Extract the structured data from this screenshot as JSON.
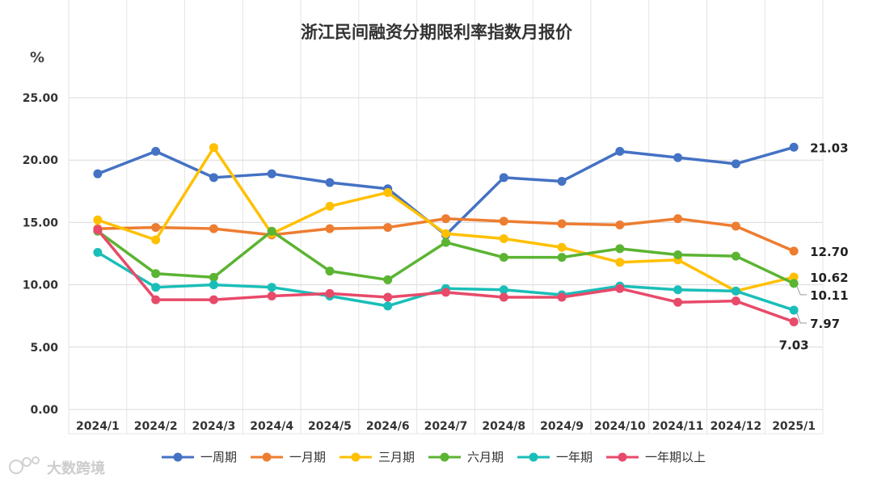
{
  "chart_data": {
    "type": "line",
    "title": "浙江民间融资分期限利率指数月报价",
    "unit_label": "%",
    "categories": [
      "2024/1",
      "2024/2",
      "2024/3",
      "2024/4",
      "2024/5",
      "2024/6",
      "2024/7",
      "2024/8",
      "2024/9",
      "2024/10",
      "2024/11",
      "2024/12",
      "2025/1"
    ],
    "yticks": [
      "0.00",
      "5.00",
      "10.00",
      "15.00",
      "20.00",
      "25.00"
    ],
    "ylim": [
      0,
      25
    ],
    "grid": true,
    "legend_position": "bottom",
    "series": [
      {
        "name": "一周期",
        "color": "#4472C4",
        "values": [
          18.9,
          20.7,
          18.6,
          18.9,
          18.2,
          17.7,
          14.0,
          18.6,
          18.3,
          20.7,
          20.2,
          19.7,
          21.03
        ],
        "end_label": "21.03"
      },
      {
        "name": "一月期",
        "color": "#ED7D31",
        "values": [
          14.5,
          14.6,
          14.5,
          14.0,
          14.5,
          14.6,
          15.3,
          15.1,
          14.9,
          14.8,
          15.3,
          14.7,
          12.7
        ],
        "end_label": "12.70"
      },
      {
        "name": "三月期",
        "color": "#FFC000",
        "values": [
          15.2,
          13.6,
          21.0,
          14.1,
          16.3,
          17.4,
          14.1,
          13.7,
          13.0,
          11.8,
          12.0,
          9.5,
          10.62
        ],
        "end_label": "10.62"
      },
      {
        "name": "六月期",
        "color": "#5BB432",
        "values": [
          14.3,
          10.9,
          10.6,
          14.3,
          11.1,
          10.4,
          13.4,
          12.2,
          12.2,
          12.9,
          12.4,
          12.3,
          10.11
        ],
        "end_label": "10.11"
      },
      {
        "name": "一年期",
        "color": "#1ABEB8",
        "values": [
          12.6,
          9.8,
          10.0,
          9.8,
          9.1,
          8.3,
          9.7,
          9.6,
          9.2,
          9.9,
          9.6,
          9.5,
          7.97
        ],
        "end_label": "7.97"
      },
      {
        "name": "一年期以上",
        "color": "#E84A6A",
        "values": [
          14.4,
          8.8,
          8.8,
          9.1,
          9.3,
          9.0,
          9.4,
          9.0,
          9.0,
          9.7,
          8.6,
          8.7,
          7.03
        ],
        "end_label": "7.03"
      }
    ]
  },
  "watermark": {
    "text": "大数跨境"
  }
}
